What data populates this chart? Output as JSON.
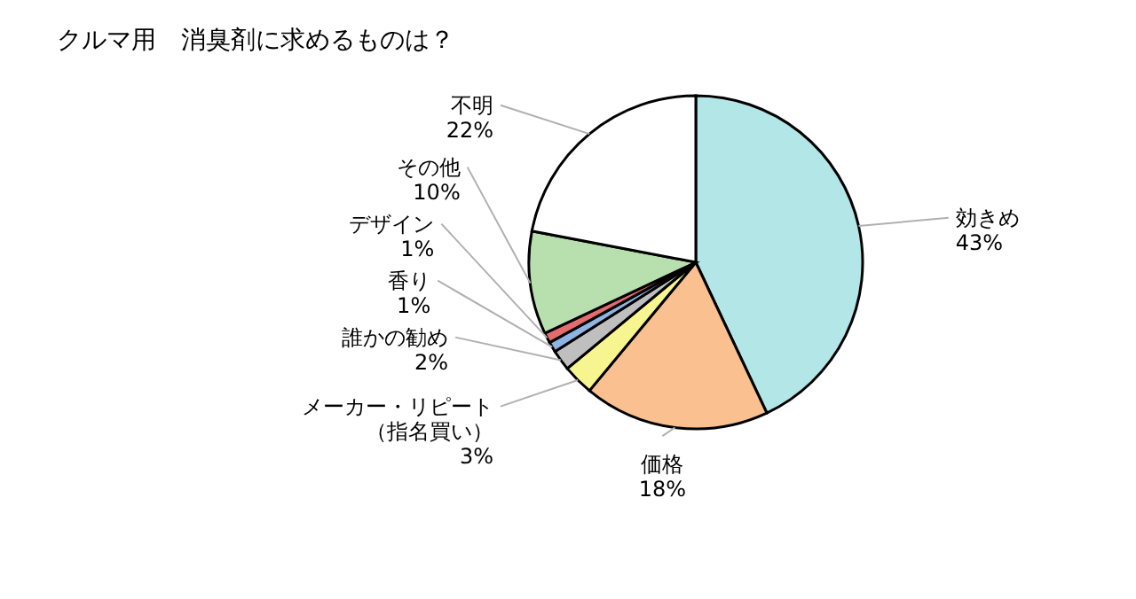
{
  "chart_data": {
    "type": "pie",
    "title": "クルマ用　消臭剤に求めるものは？",
    "categories": [
      "効きめ",
      "価格",
      "メーカー・リピート（指名買い）",
      "誰かの勧め",
      "香り",
      "デザイン",
      "その他",
      "不明"
    ],
    "values": [
      43,
      18,
      3,
      2,
      1,
      1,
      10,
      22
    ],
    "value_labels": [
      "43%",
      "18%",
      "3%",
      "2%",
      "1%",
      "1%",
      "10%",
      "22%"
    ],
    "colors": [
      "#b3e6e6",
      "#fac090",
      "#f7f58f",
      "#bfbfbf",
      "#8db4e2",
      "#e46c6c",
      "#b8dfae",
      "#ffffff"
    ]
  }
}
